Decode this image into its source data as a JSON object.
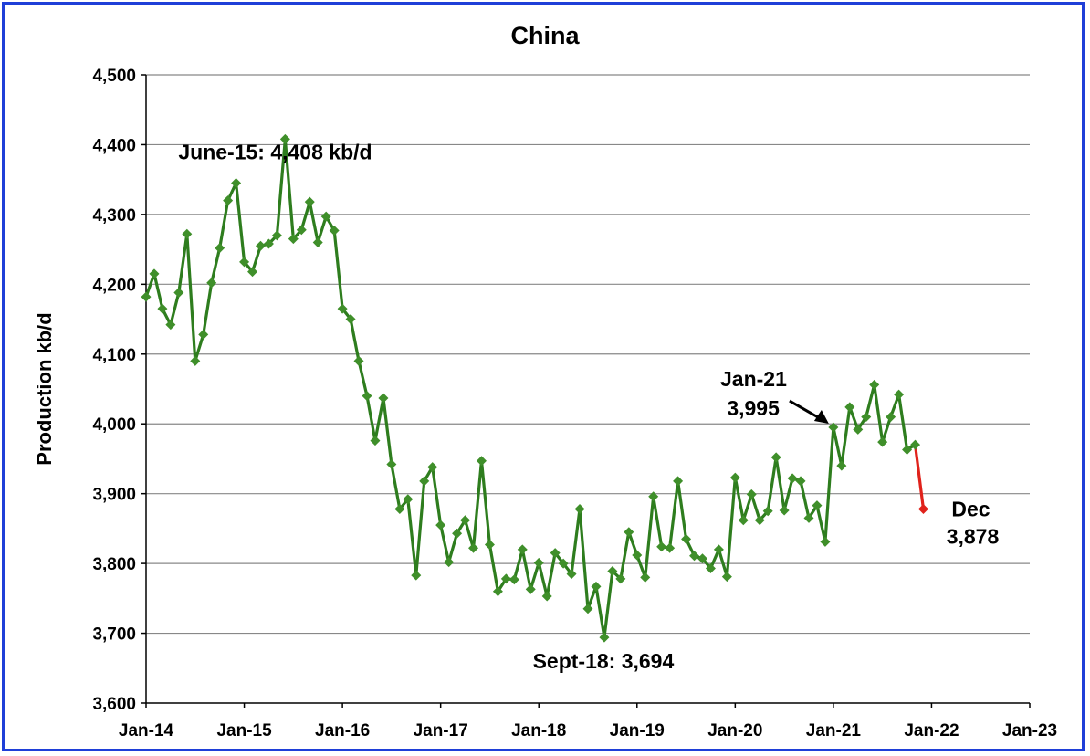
{
  "chart_data": {
    "type": "line",
    "title": "China",
    "xlabel": "",
    "ylabel": "Production kb/d",
    "ylim": [
      3600,
      4500
    ],
    "yticks": [
      3600,
      3700,
      3800,
      3900,
      4000,
      4100,
      4200,
      4300,
      4400,
      4500
    ],
    "ytick_labels": [
      "3,600",
      "3,700",
      "3,800",
      "3,900",
      "4,000",
      "4,100",
      "4,200",
      "4,300",
      "4,400",
      "4,500"
    ],
    "xticks": [
      "Jan-14",
      "Jan-15",
      "Jan-16",
      "Jan-17",
      "Jan-18",
      "Jan-19",
      "Jan-20",
      "Jan-21",
      "Jan-22",
      "Jan-23"
    ],
    "grid": true,
    "legend": "none",
    "colors": {
      "main": "#3f8f2a",
      "main_line": "#2e7d1e",
      "recent": "#e0221b",
      "frame": "#1f3fd8"
    },
    "series": [
      {
        "start": "Jan-14",
        "values": [
          4182,
          4215,
          4165,
          4142,
          4188,
          4272,
          4090,
          4128,
          4202,
          4252,
          4320,
          4345,
          4232,
          4218,
          4255,
          4258,
          4270,
          4408,
          4265,
          4278,
          4318,
          4260,
          4297,
          4277,
          4165,
          4150,
          4090,
          4040,
          3976,
          4037,
          3942,
          3878,
          3892,
          3783,
          3918,
          3938,
          3855,
          3802,
          3843,
          3862,
          3822,
          3947,
          3827,
          3760,
          3778,
          3777,
          3820,
          3763,
          3801,
          3753,
          3815,
          3800,
          3785,
          3878,
          3735,
          3767,
          3694,
          3789,
          3778,
          3845,
          3812,
          3780,
          3896,
          3824,
          3822,
          3918,
          3835,
          3811,
          3807,
          3793,
          3820,
          3781,
          3923,
          3862,
          3899,
          3862,
          3875,
          3952,
          3876,
          3922,
          3918,
          3865,
          3883,
          3831,
          3995,
          3940,
          4024,
          3992,
          4010,
          4056,
          3974,
          4010,
          4042,
          3963,
          3970
        ]
      },
      {
        "start": "Nov-21",
        "values": [
          3970,
          3878
        ]
      }
    ],
    "annotations": [
      {
        "text": "June-15: 4,408 kb/d",
        "x": "Jun-15",
        "y": 4408
      },
      {
        "text": "Sept-18: 3,694",
        "x": "Sep-18",
        "y": 3694
      },
      {
        "text": "Jan-21",
        "x": "Jan-21",
        "y": 3995,
        "arrow": true
      },
      {
        "text": "3,995"
      },
      {
        "text": "Dec",
        "x": "Dec-21",
        "y": 3878
      },
      {
        "text": "3,878"
      }
    ]
  }
}
